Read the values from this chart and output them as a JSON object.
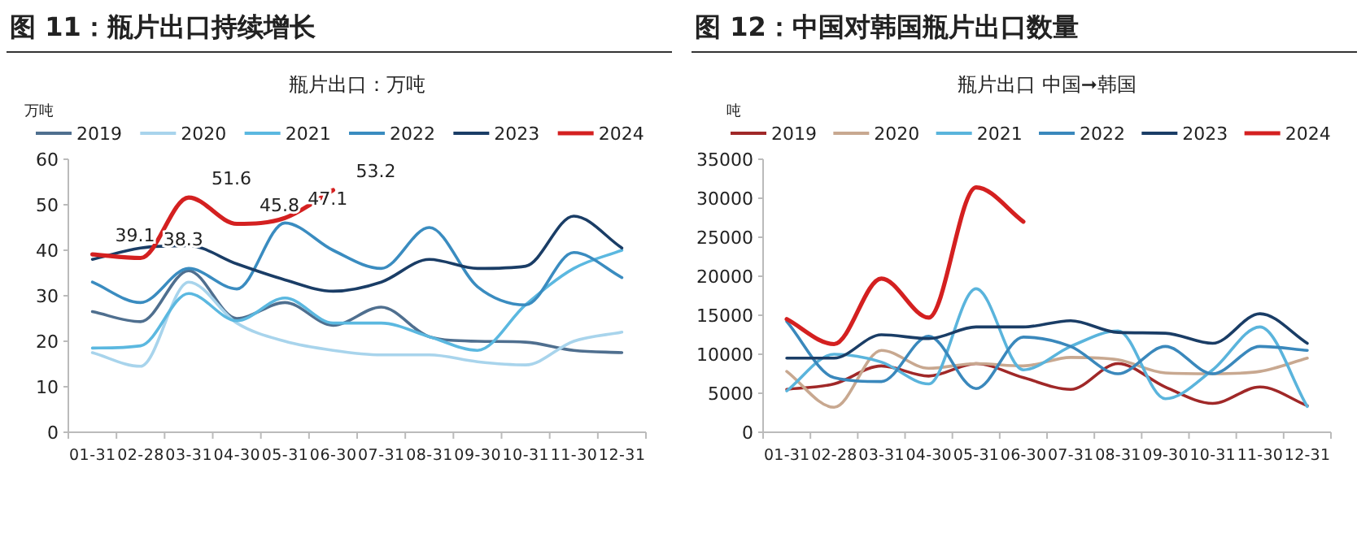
{
  "chart_data": [
    {
      "type": "line",
      "title": "图 11：瓶片出口持续增长",
      "subtitle": "瓶片出口：万吨",
      "ylabel": "万吨",
      "legend": "top",
      "categories": [
        "01-31",
        "02-28",
        "03-31",
        "04-30",
        "05-31",
        "06-30",
        "07-31",
        "08-31",
        "09-30",
        "10-31",
        "11-30",
        "12-31"
      ],
      "ylim": [
        0,
        60
      ],
      "yticks": [
        0,
        10,
        20,
        30,
        40,
        50,
        60
      ],
      "series": [
        {
          "name": "2019",
          "color": "#4f6f8f",
          "values": [
            26.5,
            24.3,
            35.5,
            25,
            28.5,
            23.5,
            27.5,
            21,
            20,
            19.8,
            18,
            17.5
          ]
        },
        {
          "name": "2020",
          "color": "#a8d4ec",
          "values": [
            17.5,
            14.5,
            33,
            24,
            20,
            18,
            17,
            17,
            15.5,
            14.8,
            20,
            22
          ]
        },
        {
          "name": "2021",
          "color": "#5bb8e0",
          "values": [
            18.5,
            19,
            30.5,
            24.5,
            29.5,
            24,
            24,
            21,
            18,
            28,
            36,
            40
          ]
        },
        {
          "name": "2022",
          "color": "#3a8cc0",
          "values": [
            33,
            28.5,
            36,
            31.5,
            46,
            40,
            36,
            45,
            32,
            28,
            39.5,
            34
          ]
        },
        {
          "name": "2023",
          "color": "#1a3d66",
          "values": [
            38,
            40.5,
            41,
            37,
            33.5,
            31,
            33,
            38,
            36,
            36.5,
            47.5,
            40.5
          ]
        },
        {
          "name": "2024",
          "color": "#d42020",
          "values": [
            39.1,
            38.3,
            51.6,
            45.8,
            47.1,
            53.2,
            null,
            null,
            null,
            null,
            null,
            null
          ],
          "value_labels": [
            "39.1",
            "38.3",
            "51.6",
            "45.8",
            "47.1",
            "53.2",
            null,
            null,
            null,
            null,
            null,
            null
          ]
        }
      ]
    },
    {
      "type": "line",
      "title": "图 12：中国对韩国瓶片出口数量",
      "subtitle": "瓶片出口  中国➞韩国",
      "ylabel": "吨",
      "legend": "top",
      "categories": [
        "01-31",
        "02-28",
        "03-31",
        "04-30",
        "05-31",
        "06-30",
        "07-31",
        "08-31",
        "09-30",
        "10-31",
        "11-30",
        "12-31"
      ],
      "ylim": [
        0,
        35000
      ],
      "yticks": [
        0,
        5000,
        10000,
        15000,
        20000,
        25000,
        30000,
        35000
      ],
      "series": [
        {
          "name": "2019",
          "color": "#a02828",
          "values": [
            5500,
            6200,
            8500,
            7200,
            8800,
            7000,
            5500,
            8800,
            5800,
            3700,
            5800,
            3400
          ]
        },
        {
          "name": "2020",
          "color": "#c8a890",
          "values": [
            7800,
            3200,
            10500,
            8200,
            8800,
            8500,
            9600,
            9300,
            7600,
            7500,
            7800,
            9500
          ]
        },
        {
          "name": "2021",
          "color": "#5ab4dc",
          "values": [
            5300,
            10000,
            9000,
            6200,
            18400,
            8000,
            11000,
            13000,
            4300,
            8000,
            13500,
            3300
          ]
        },
        {
          "name": "2022",
          "color": "#3a88bc",
          "values": [
            14200,
            7000,
            6500,
            12300,
            5600,
            12200,
            11000,
            7500,
            11000,
            7500,
            11000,
            10500
          ]
        },
        {
          "name": "2023",
          "color": "#1a3d66",
          "values": [
            9500,
            9500,
            12500,
            12000,
            13500,
            13500,
            14300,
            12800,
            12700,
            11400,
            15200,
            11400
          ]
        },
        {
          "name": "2024",
          "color": "#d42020",
          "values": [
            14500,
            11300,
            19700,
            14700,
            31400,
            27000,
            null,
            null,
            null,
            null,
            null,
            null
          ]
        }
      ]
    }
  ]
}
